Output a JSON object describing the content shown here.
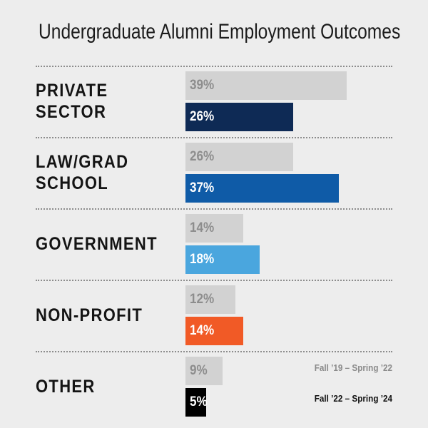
{
  "title": "Undergraduate Alumni Employment Outcomes",
  "legend": {
    "previous": "Fall ’19 – Spring ’22",
    "current": "Fall ’22 – Spring ’24"
  },
  "chart_data": {
    "type": "bar",
    "orientation": "horizontal",
    "title": "Undergraduate Alumni Employment Outcomes",
    "categories": [
      "PRIVATE\nSECTOR",
      "LAW/GRAD\nSCHOOL",
      "GOVERNMENT",
      "NON-PROFIT",
      "OTHER"
    ],
    "series": [
      {
        "name": "Fall ’19 – Spring ’22",
        "values": [
          39,
          26,
          14,
          12,
          9
        ],
        "labels": [
          "39%",
          "26%",
          "14%",
          "12%",
          "9%"
        ]
      },
      {
        "name": "Fall ’22 – Spring ’24",
        "values": [
          26,
          37,
          18,
          14,
          5
        ],
        "labels": [
          "26%",
          "37%",
          "18%",
          "14%",
          "5%"
        ]
      }
    ],
    "colors": {
      "previous": "#d2d2d2",
      "previous_text": "#8d8d8d",
      "current": [
        "#0e2a55",
        "#0f5ba7",
        "#4aa6de",
        "#f15a26",
        "#000000"
      ],
      "current_text": "#ffffff"
    },
    "unit": "%",
    "legend_position": "bottom-right",
    "grid": false
  }
}
